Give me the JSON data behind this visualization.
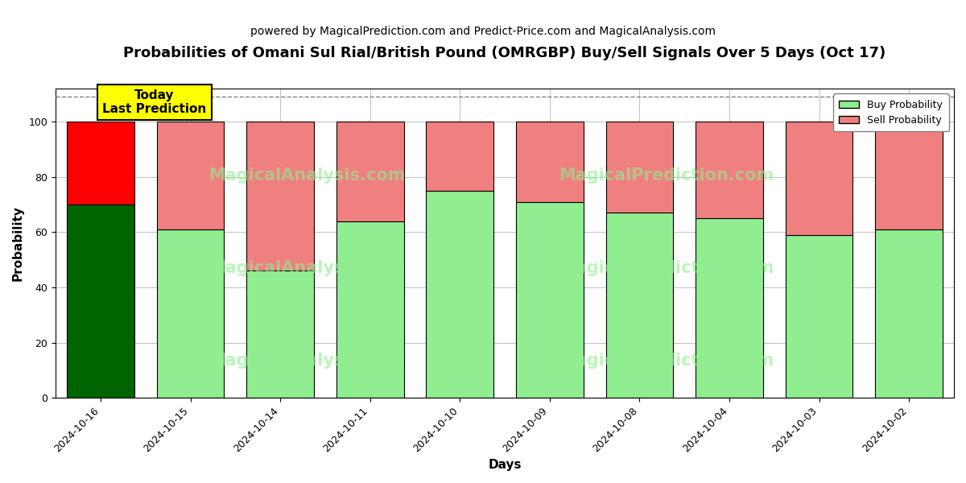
{
  "title": "Probabilities of Omani Sul Rial/British Pound (OMRGBP) Buy/Sell Signals Over 5 Days (Oct 17)",
  "subtitle": "powered by MagicalPrediction.com and Predict-Price.com and MagicalAnalysis.com",
  "xlabel": "Days",
  "ylabel": "Probability",
  "categories": [
    "2024-10-16",
    "2024-10-15",
    "2024-10-14",
    "2024-10-11",
    "2024-10-10",
    "2024-10-09",
    "2024-10-08",
    "2024-10-04",
    "2024-10-03",
    "2024-10-02"
  ],
  "buy_values": [
    70,
    61,
    46,
    64,
    75,
    71,
    67,
    65,
    59,
    61
  ],
  "sell_values": [
    30,
    39,
    54,
    36,
    25,
    29,
    33,
    35,
    41,
    39
  ],
  "today_bar_index": 0,
  "buy_color_today": "#006400",
  "sell_color_today": "#FF0000",
  "buy_color_normal": "#90EE90",
  "sell_color_normal": "#F08080",
  "bar_edge_color": "#000000",
  "bar_edge_width": 0.8,
  "ylim": [
    0,
    112
  ],
  "yticks": [
    0,
    20,
    40,
    60,
    80,
    100
  ],
  "dashed_line_y": 109,
  "legend_buy_label": "Buy Probability",
  "legend_sell_label": "Sell Probability",
  "today_annotation": "Today\nLast Prediction",
  "today_box_color": "#FFFF00",
  "background_color": "#FFFFFF",
  "title_fontsize": 13,
  "subtitle_fontsize": 10,
  "axis_label_fontsize": 11,
  "tick_fontsize": 9,
  "bar_width": 0.75
}
